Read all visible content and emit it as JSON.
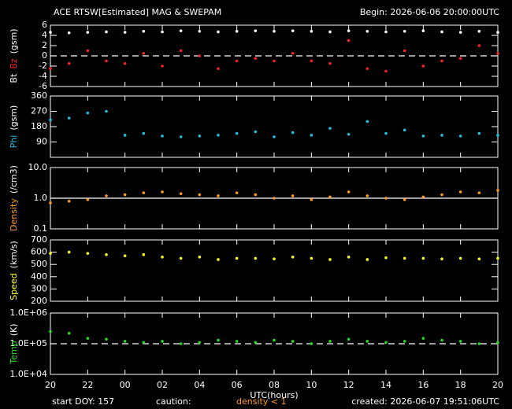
{
  "title": "ACE RTSW[Estimated] MAG & SWEPAM",
  "subtitle": "Begin: 2026-06-06 20:00:00UTC",
  "xlabel": "UTC(hours)",
  "xlim": [
    20,
    44
  ],
  "xticks": [
    20,
    22,
    {
      "value": 24,
      "label": "00"
    },
    {
      "value": 26,
      "label": "02"
    },
    {
      "value": 28,
      "label": "04"
    },
    {
      "value": 30,
      "label": "06"
    },
    {
      "value": 32,
      "label": "08"
    },
    {
      "value": 34,
      "label": "10"
    },
    {
      "value": 36,
      "label": "12"
    },
    {
      "value": 38,
      "label": "14"
    },
    {
      "value": 40,
      "label": "16"
    },
    {
      "value": 42,
      "label": "18"
    },
    {
      "value": 44,
      "label": "20"
    }
  ],
  "x": [
    20,
    21,
    22,
    23,
    24,
    25,
    26,
    27,
    28,
    29,
    30,
    31,
    32,
    33,
    34,
    35,
    36,
    37,
    38,
    39,
    40,
    41,
    42,
    43,
    44
  ],
  "footer": {
    "start": "start DOY: 157",
    "caution": "caution:",
    "caution_note": "density < 1",
    "created": "created: 2026-06-07 19:51:06UTC"
  },
  "chart_data": [
    {
      "type": "scatter",
      "ylabel": "(gsm)",
      "ylim": [
        -6,
        6
      ],
      "yticks": [
        -6,
        -4,
        -2,
        0,
        2,
        4,
        6
      ],
      "refline": 0,
      "refline_dash": true,
      "series": [
        {
          "name": "Bt",
          "color": "#ffffff",
          "values": [
            4.6,
            4.5,
            4.6,
            4.7,
            4.6,
            4.8,
            4.7,
            4.9,
            4.8,
            4.7,
            4.8,
            4.9,
            4.8,
            4.9,
            4.8,
            4.7,
            4.9,
            4.8,
            4.7,
            4.8,
            4.9,
            4.7,
            4.6,
            4.8,
            4.6
          ]
        },
        {
          "name": "Bz",
          "color": "#ff2020",
          "values": [
            -2.5,
            -1.5,
            1,
            -1,
            -1.5,
            0.5,
            -2,
            1,
            0,
            -2.5,
            -1,
            -0.5,
            -1,
            0.5,
            -1,
            -1.5,
            3,
            -2.5,
            -3,
            1,
            -2,
            -1,
            -0.5,
            2,
            0.5
          ]
        }
      ]
    },
    {
      "type": "scatter",
      "ylabel": "(gsm)",
      "ylim": [
        0,
        360
      ],
      "yticks": [
        90,
        180,
        270,
        360
      ],
      "series": [
        {
          "name": "Phi",
          "color": "#20c0e0",
          "values": [
            220,
            230,
            260,
            270,
            130,
            140,
            125,
            120,
            125,
            130,
            140,
            150,
            120,
            145,
            130,
            170,
            135,
            210,
            140,
            160,
            125,
            130,
            125,
            140,
            130
          ]
        }
      ]
    },
    {
      "type": "scatter",
      "ylabel": "(/cm3)",
      "log": true,
      "ylim": [
        0.1,
        10
      ],
      "yticks": [
        0.1,
        {
          "value": 1,
          "label": "1.0"
        },
        {
          "value": 10,
          "label": "10.0"
        }
      ],
      "refline": 1,
      "refline_dash": false,
      "series": [
        {
          "name": "Density",
          "color": "#ff9a20",
          "values": [
            0.7,
            0.8,
            0.9,
            1.2,
            1.3,
            1.5,
            1.6,
            1.4,
            1.3,
            1.2,
            1.5,
            1.3,
            1.0,
            1.2,
            0.9,
            1.1,
            1.6,
            1.2,
            1.0,
            0.9,
            1.1,
            1.3,
            1.6,
            1.5,
            1.8
          ]
        }
      ]
    },
    {
      "type": "scatter",
      "ylabel": "(km/s)",
      "ylim": [
        200,
        700
      ],
      "yticks": [
        200,
        300,
        400,
        500,
        600,
        700
      ],
      "series": [
        {
          "name": "Speed",
          "color": "#ffff20",
          "values": [
            590,
            600,
            590,
            580,
            570,
            580,
            560,
            550,
            560,
            540,
            550,
            550,
            545,
            560,
            550,
            540,
            560,
            540,
            555,
            550,
            550,
            545,
            550,
            545,
            550
          ]
        }
      ]
    },
    {
      "type": "scatter",
      "ylabel": "(K)",
      "log": true,
      "ylim": [
        10000,
        1000000
      ],
      "yticks": [
        {
          "value": 10000,
          "label": "1.0E+04"
        },
        {
          "value": 100000,
          "label": "1.0E+05"
        },
        {
          "value": 1000000,
          "label": "1.0E+06"
        }
      ],
      "refline": 100000,
      "refline_dash": true,
      "series": [
        {
          "name": "Temp",
          "color": "#20e020",
          "values": [
            250000,
            220000,
            150000,
            140000,
            120000,
            110000,
            120000,
            100000,
            110000,
            130000,
            120000,
            110000,
            130000,
            120000,
            100000,
            120000,
            140000,
            120000,
            110000,
            120000,
            150000,
            130000,
            120000,
            100000,
            110000
          ]
        }
      ]
    }
  ]
}
